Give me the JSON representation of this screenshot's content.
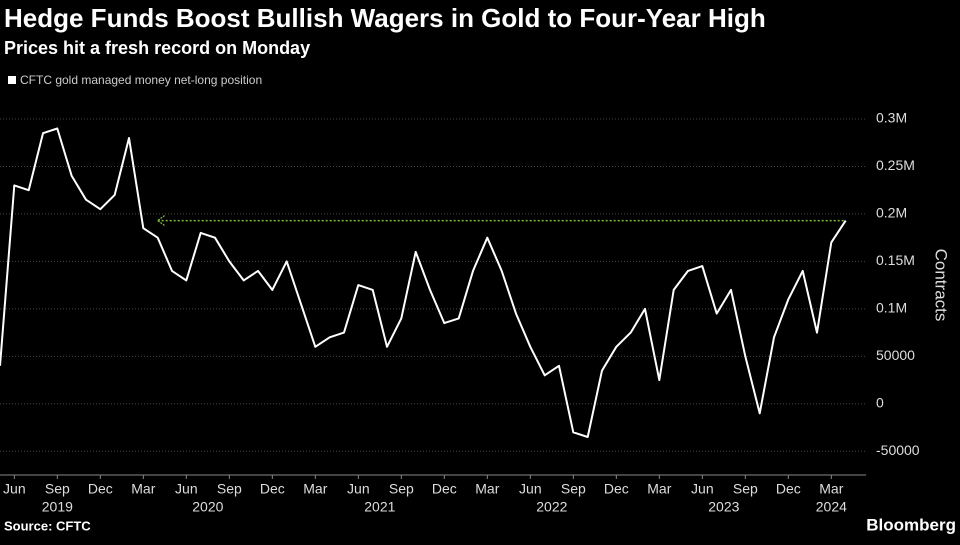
{
  "chart_data": {
    "type": "line",
    "title": "Hedge Funds Boost Bullish Wagers in Gold to Four-Year High",
    "subtitle": "Prices hit a fresh record on Monday",
    "y_label": "Contracts",
    "source": "Source: CFTC",
    "brand": "Bloomberg",
    "x": [
      "2019-05",
      "2019-06",
      "2019-07",
      "2019-08",
      "2019-09",
      "2019-10",
      "2019-11",
      "2019-12",
      "2020-01",
      "2020-02",
      "2020-03",
      "2020-04",
      "2020-05",
      "2020-06",
      "2020-07",
      "2020-08",
      "2020-09",
      "2020-10",
      "2020-11",
      "2020-12",
      "2021-01",
      "2021-02",
      "2021-03",
      "2021-04",
      "2021-05",
      "2021-06",
      "2021-07",
      "2021-08",
      "2021-09",
      "2021-10",
      "2021-11",
      "2021-12",
      "2022-01",
      "2022-02",
      "2022-03",
      "2022-04",
      "2022-05",
      "2022-06",
      "2022-07",
      "2022-08",
      "2022-09",
      "2022-10",
      "2022-11",
      "2022-12",
      "2023-01",
      "2023-02",
      "2023-03",
      "2023-04",
      "2023-05",
      "2023-06",
      "2023-07",
      "2023-08",
      "2023-09",
      "2023-10",
      "2023-11",
      "2023-12",
      "2024-01",
      "2024-02",
      "2024-03",
      "2024-04"
    ],
    "series": [
      {
        "name": "CFTC gold managed money net-long position",
        "color": "#ffffff",
        "values": [
          40000,
          230000,
          225000,
          285000,
          290000,
          240000,
          215000,
          205000,
          220000,
          280000,
          185000,
          175000,
          140000,
          130000,
          180000,
          175000,
          150000,
          130000,
          140000,
          120000,
          150000,
          105000,
          60000,
          70000,
          75000,
          125000,
          120000,
          60000,
          90000,
          160000,
          120000,
          85000,
          90000,
          140000,
          175000,
          140000,
          95000,
          60000,
          30000,
          40000,
          -30000,
          -35000,
          35000,
          60000,
          75000,
          100000,
          25000,
          120000,
          140000,
          145000,
          95000,
          120000,
          50000,
          -10000,
          70000,
          110000,
          140000,
          75000,
          170000,
          193000
        ]
      }
    ],
    "reference_line": {
      "value": 193000,
      "from": "2020-04",
      "color": "#7dbf3a"
    },
    "xlim": [
      "2019-05",
      "2024-05"
    ],
    "xticks": [
      {
        "value": "2019-06",
        "label": "Jun"
      },
      {
        "value": "2019-09",
        "label": "Sep"
      },
      {
        "value": "2019-12",
        "label": "Dec"
      },
      {
        "value": "2020-03",
        "label": "Mar"
      },
      {
        "value": "2020-06",
        "label": "Jun"
      },
      {
        "value": "2020-09",
        "label": "Sep"
      },
      {
        "value": "2020-12",
        "label": "Dec"
      },
      {
        "value": "2021-03",
        "label": "Mar"
      },
      {
        "value": "2021-06",
        "label": "Jun"
      },
      {
        "value": "2021-09",
        "label": "Sep"
      },
      {
        "value": "2021-12",
        "label": "Dec"
      },
      {
        "value": "2022-03",
        "label": "Mar"
      },
      {
        "value": "2022-06",
        "label": "Jun"
      },
      {
        "value": "2022-09",
        "label": "Sep"
      },
      {
        "value": "2022-12",
        "label": "Dec"
      },
      {
        "value": "2023-03",
        "label": "Mar"
      },
      {
        "value": "2023-06",
        "label": "Jun"
      },
      {
        "value": "2023-09",
        "label": "Sep"
      },
      {
        "value": "2023-12",
        "label": "Dec"
      },
      {
        "value": "2024-03",
        "label": "Mar"
      }
    ],
    "years": [
      "2019",
      "2020",
      "2021",
      "2022",
      "2023",
      "2024"
    ],
    "ylim": [
      -75000,
      320000
    ],
    "yticks": [
      {
        "value": 300000,
        "label": "0.3M"
      },
      {
        "value": 250000,
        "label": "0.25M"
      },
      {
        "value": 200000,
        "label": "0.2M"
      },
      {
        "value": 150000,
        "label": "0.15M"
      },
      {
        "value": 100000,
        "label": "0.1M"
      },
      50000,
      0,
      -50000
    ],
    "grid": true
  }
}
